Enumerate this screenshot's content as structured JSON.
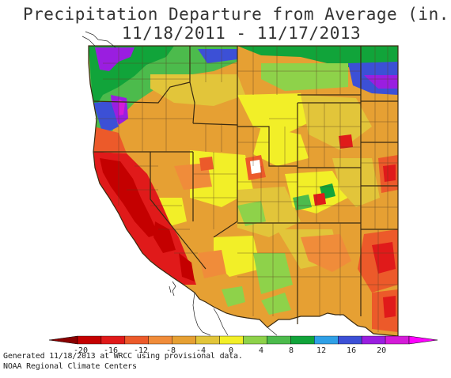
{
  "title": {
    "line1": "Precipitation Departure from Average (in.)",
    "line2": "11/18/2011 - 11/17/2013"
  },
  "legend": {
    "ticks": [
      "-20",
      "-16",
      "-12",
      "-8",
      "-4",
      "0",
      "4",
      "8",
      "12",
      "16",
      "20"
    ],
    "colors": [
      "#c40000",
      "#e01a1a",
      "#ec5a2a",
      "#f08c3a",
      "#e6a033",
      "#e2c53a",
      "#f2ef28",
      "#8ed24a",
      "#4cbb4c",
      "#11a43a",
      "#2fa0e6",
      "#3c50d6",
      "#9a1ee0",
      "#d41bd8"
    ],
    "arrow_left_color": "#8a0000",
    "arrow_right_color": "#ff00ff"
  },
  "footer": {
    "line1": "Generated 11/18/2013 at WRCC using provisional data.",
    "line2": "NOAA Regional Climate Centers"
  },
  "map": {
    "region": "Western United States",
    "ocean_color": "#ffffff",
    "border_color": "#3a2a10"
  }
}
